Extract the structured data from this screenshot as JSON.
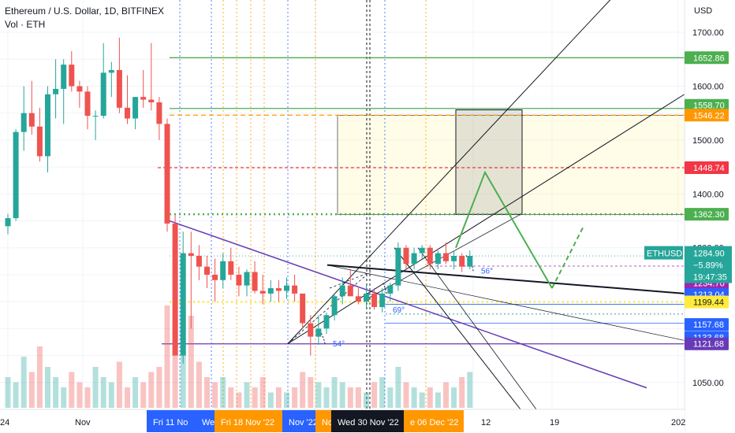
{
  "chart_data": {
    "type": "candlestick",
    "title": "Ethereum / U.S. Dollar, 1D, BITFINEX",
    "subtitle": "Vol · ETH",
    "currency_label": "USD",
    "ylim": [
      1000,
      1760
    ],
    "y_ticks": [
      "1700.00",
      "1600.00",
      "1500.00",
      "1400.00",
      "1300.00",
      "1050.00"
    ],
    "x_tick_labels": [
      "24",
      "Nov",
      "12",
      "19",
      "202"
    ],
    "x_date_badges": [
      {
        "label": "Fri 11 No",
        "color": "#2962ff"
      },
      {
        "label": "Wed",
        "color": "#2962ff"
      },
      {
        "label": "Fri 18 Nov '22",
        "color": "#ff9800"
      },
      {
        "label": "Nov '22",
        "color": "#2962ff"
      },
      {
        "label": "No",
        "color": "#ff9800"
      },
      {
        "label": "Wed 30 Nov '22",
        "color": "#131722"
      },
      {
        "label": "e 06 Dec '22",
        "color": "#ff9800"
      }
    ],
    "candles": [
      [
        1340,
        1363,
        1325,
        1355
      ],
      [
        1355,
        1520,
        1350,
        1515
      ],
      [
        1515,
        1600,
        1480,
        1550
      ],
      [
        1550,
        1610,
        1510,
        1525
      ],
      [
        1525,
        1560,
        1460,
        1470
      ],
      [
        1470,
        1600,
        1440,
        1585
      ],
      [
        1585,
        1650,
        1540,
        1595
      ],
      [
        1595,
        1650,
        1530,
        1640
      ],
      [
        1640,
        1665,
        1590,
        1600
      ],
      [
        1600,
        1610,
        1560,
        1590
      ],
      [
        1590,
        1600,
        1520,
        1545
      ],
      [
        1545,
        1555,
        1500,
        1545
      ],
      [
        1545,
        1680,
        1540,
        1625
      ],
      [
        1625,
        1645,
        1580,
        1630
      ],
      [
        1630,
        1690,
        1550,
        1560
      ],
      [
        1560,
        1620,
        1530,
        1540
      ],
      [
        1540,
        1580,
        1520,
        1580
      ],
      [
        1580,
        1630,
        1560,
        1575
      ],
      [
        1575,
        1680,
        1555,
        1570
      ],
      [
        1570,
        1580,
        1500,
        1530
      ],
      [
        1530,
        1540,
        1330,
        1345
      ],
      [
        1345,
        1360,
        1100,
        1100
      ],
      [
        1100,
        1330,
        1085,
        1290
      ],
      [
        1290,
        1330,
        1150,
        1285
      ],
      [
        1285,
        1305,
        1240,
        1265
      ],
      [
        1265,
        1285,
        1225,
        1250
      ],
      [
        1250,
        1280,
        1200,
        1240
      ],
      [
        1240,
        1290,
        1225,
        1275
      ],
      [
        1275,
        1300,
        1240,
        1250
      ],
      [
        1250,
        1265,
        1210,
        1230
      ],
      [
        1230,
        1260,
        1210,
        1255
      ],
      [
        1255,
        1275,
        1215,
        1220
      ],
      [
        1220,
        1250,
        1195,
        1215
      ],
      [
        1215,
        1240,
        1200,
        1225
      ],
      [
        1225,
        1240,
        1200,
        1220
      ],
      [
        1220,
        1245,
        1205,
        1230
      ],
      [
        1230,
        1250,
        1200,
        1215
      ],
      [
        1215,
        1215,
        1150,
        1160
      ],
      [
        1160,
        1175,
        1100,
        1135
      ],
      [
        1135,
        1175,
        1120,
        1150
      ],
      [
        1150,
        1180,
        1140,
        1175
      ],
      [
        1175,
        1215,
        1165,
        1210
      ],
      [
        1210,
        1245,
        1195,
        1230
      ],
      [
        1230,
        1260,
        1210,
        1210
      ],
      [
        1210,
        1225,
        1195,
        1200
      ],
      [
        1200,
        1230,
        1190,
        1215
      ],
      [
        1215,
        1225,
        1185,
        1190
      ],
      [
        1190,
        1225,
        1180,
        1215
      ],
      [
        1215,
        1235,
        1200,
        1230
      ],
      [
        1230,
        1310,
        1220,
        1300
      ],
      [
        1300,
        1305,
        1260,
        1270
      ],
      [
        1270,
        1300,
        1260,
        1290
      ],
      [
        1290,
        1305,
        1280,
        1300
      ],
      [
        1300,
        1305,
        1260,
        1270
      ],
      [
        1270,
        1295,
        1260,
        1290
      ],
      [
        1290,
        1310,
        1270,
        1275
      ],
      [
        1275,
        1295,
        1260,
        1285
      ],
      [
        1285,
        1290,
        1255,
        1265
      ],
      [
        1265,
        1295,
        1260,
        1285
      ]
    ],
    "volumes": [
      0.3,
      0.25,
      0.5,
      0.35,
      0.6,
      0.4,
      0.3,
      0.2,
      0.35,
      0.25,
      0.2,
      0.4,
      0.3,
      0.25,
      0.45,
      0.2,
      0.3,
      0.25,
      0.35,
      0.4,
      1.0,
      0.85,
      0.95,
      0.9,
      0.45,
      0.3,
      0.25,
      0.3,
      0.2,
      0.15,
      0.25,
      0.2,
      0.3,
      0.15,
      0.2,
      0.15,
      0.2,
      0.35,
      0.3,
      0.25,
      0.2,
      0.3,
      0.25,
      0.2,
      0.2,
      0.15,
      0.25,
      0.3,
      0.2,
      0.4,
      0.25,
      0.2,
      0.15,
      0.2,
      0.15,
      0.25,
      0.2,
      0.3,
      0.35
    ],
    "horizontal_levels": [
      {
        "price": 1652.86,
        "label": "1652.86",
        "color": "#4caf50",
        "style": "solid"
      },
      {
        "price": 1558.7,
        "label": "1558.70",
        "color": "#4caf50",
        "style": "solid"
      },
      {
        "price": 1546.22,
        "label": "1546.22",
        "color": "#ff9800",
        "style": "dashed"
      },
      {
        "price": 1448.74,
        "label": "1448.74",
        "color": "#f23645",
        "style": "dashed"
      },
      {
        "price": 1362.3,
        "label": "1362.30",
        "color": "#4caf50",
        "style": "dotted"
      },
      {
        "price": 1284.88,
        "label": "1284.88",
        "color": "#4caf50",
        "style": "solid"
      },
      {
        "price": 1234.7,
        "label": "1234.70",
        "color": "#9c27b0",
        "style": "none"
      },
      {
        "price": 1213.04,
        "label": "1213.04",
        "color": "#2962ff",
        "style": "none"
      },
      {
        "price": 1199.44,
        "label": "1199.44",
        "color": "#ffeb3b",
        "style": "dotted"
      },
      {
        "price": 1157.68,
        "label": "1157.68",
        "color": "#2962ff",
        "style": "none"
      },
      {
        "price": 1133.68,
        "label": "1133.68",
        "color": "#2962ff",
        "style": "none"
      },
      {
        "price": 1121.68,
        "label": "1121.68",
        "color": "#673ab7",
        "style": "solid"
      }
    ],
    "current_price": {
      "symbol": "ETHUSD",
      "price": "1284.90",
      "change": "−5.89%",
      "countdown": "19:47:35",
      "color": "#26a69a"
    },
    "angle_labels": [
      "56°",
      "69°",
      "54°"
    ],
    "colors": {
      "up": "#26a69a",
      "down": "#ef5350",
      "grid": "#f0f3fa",
      "axis_text": "#131722"
    }
  }
}
